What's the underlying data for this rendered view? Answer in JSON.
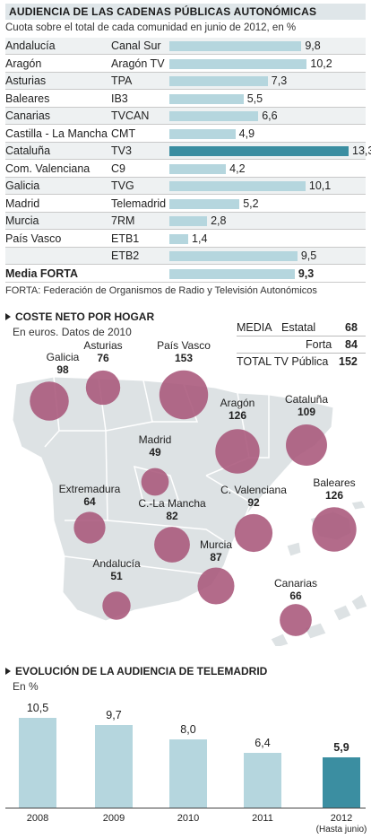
{
  "section1": {
    "title": "AUDIENCIA DE LAS CADENAS PÚBLICAS AUTONÓMICAS",
    "subtitle": "Cuota sobre el total de cada comunidad en junio de 2012, en %",
    "footnote": "FORTA: Federación de Organismos de Radio y Televisión Autonómicos"
  },
  "section2": {
    "title": "COSTE NETO POR HOGAR",
    "subtitle": "En euros. Datos de 2010",
    "legend": {
      "media_label": "MEDIA",
      "estatal_label": "Estatal",
      "estatal_value": "68",
      "forta_label": "Forta",
      "forta_value": "84",
      "total_label": "TOTAL TV Pública",
      "total_value": "152"
    }
  },
  "section3": {
    "title": "EVOLUCIÓN DE LA AUDIENCIA DE TELEMADRID",
    "subtitle": "En %",
    "note_2012": "(Hasta junio)"
  },
  "colors": {
    "bar": "#b5d6de",
    "highlight": "#3b8ea1",
    "bubble": "#a9577a",
    "map": "#dde2e4"
  },
  "chart_data": [
    {
      "type": "bar",
      "orientation": "horizontal",
      "title": "AUDIENCIA DE LAS CADENAS PÚBLICAS AUTONÓMICAS",
      "rows": [
        {
          "region": "Andalucía",
          "channel": "Canal Sur",
          "value": 9.8,
          "label": "9,8"
        },
        {
          "region": "Aragón",
          "channel": "Aragón TV",
          "value": 10.2,
          "label": "10,2"
        },
        {
          "region": "Asturias",
          "channel": "TPA",
          "value": 7.3,
          "label": "7,3"
        },
        {
          "region": "Baleares",
          "channel": "IB3",
          "value": 5.5,
          "label": "5,5"
        },
        {
          "region": "Canarias",
          "channel": "TVCAN",
          "value": 6.6,
          "label": "6,6"
        },
        {
          "region": "Castilla - La Mancha",
          "channel": "CMT",
          "value": 4.9,
          "label": "4,9"
        },
        {
          "region": "Cataluña",
          "channel": "TV3",
          "value": 13.3,
          "label": "13,3",
          "highlight": true
        },
        {
          "region": "Com. Valenciana",
          "channel": "C9",
          "value": 4.2,
          "label": "4,2"
        },
        {
          "region": "Galicia",
          "channel": "TVG",
          "value": 10.1,
          "label": "10,1"
        },
        {
          "region": "Madrid",
          "channel": "Telemadrid",
          "value": 5.2,
          "label": "5,2"
        },
        {
          "region": "Murcia",
          "channel": "7RM",
          "value": 2.8,
          "label": "2,8"
        },
        {
          "region": "País Vasco",
          "channel": "ETB1",
          "value": 1.4,
          "label": "1,4"
        },
        {
          "region": "",
          "channel": "ETB2",
          "value": 9.5,
          "label": "9,5"
        },
        {
          "region": "Media FORTA",
          "channel": "",
          "value": 9.3,
          "label": "9,3",
          "bold": true
        }
      ],
      "xlim": [
        0,
        13.3
      ]
    },
    {
      "type": "bubble",
      "title": "COSTE NETO POR HOGAR",
      "points": [
        {
          "name": "Galicia",
          "value": 98
        },
        {
          "name": "Asturias",
          "value": 76
        },
        {
          "name": "País Vasco",
          "value": 153
        },
        {
          "name": "Aragón",
          "value": 126
        },
        {
          "name": "Cataluña",
          "value": 109
        },
        {
          "name": "Madrid",
          "value": 49
        },
        {
          "name": "Extremadura",
          "value": 64
        },
        {
          "name": "C.-La Mancha",
          "value": 82
        },
        {
          "name": "C. Valenciana",
          "value": 92
        },
        {
          "name": "Baleares",
          "value": 126
        },
        {
          "name": "Murcia",
          "value": 87
        },
        {
          "name": "Andalucía",
          "value": 51
        },
        {
          "name": "Canarias",
          "value": 66
        }
      ]
    },
    {
      "type": "bar",
      "title": "EVOLUCIÓN DE LA AUDIENCIA DE TELEMADRID",
      "categories": [
        "2008",
        "2009",
        "2010",
        "2011",
        "2012"
      ],
      "values": [
        10.5,
        9.7,
        8.0,
        6.4,
        5.9
      ],
      "labels": [
        "10,5",
        "9,7",
        "8,0",
        "6,4",
        "5,9"
      ],
      "highlight_index": 4,
      "ylim": [
        0,
        10.5
      ]
    }
  ]
}
